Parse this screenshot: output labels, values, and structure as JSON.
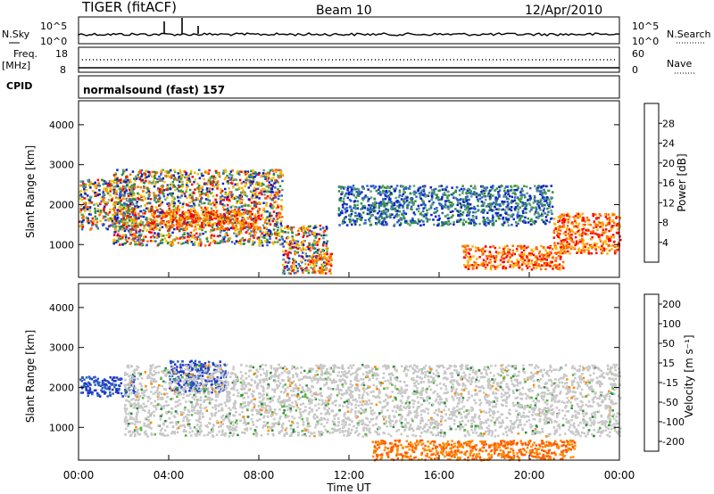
{
  "header": {
    "station": "TIGER (fitACF)",
    "beam": "Beam 10",
    "date": "12/Apr/2010"
  },
  "top_panels": {
    "nsky_label": "N.Sky",
    "nsky_ticks": [
      "10^5",
      "10^0"
    ],
    "nsearch_label": "N.Search",
    "nsearch_ticks": [
      "10^5",
      "10^0"
    ],
    "freq_label_1": "Freq.",
    "freq_label_2": "[MHz]",
    "freq_ticks": [
      "18",
      "8"
    ],
    "nave_label": "Nave",
    "nave_ticks": [
      "60",
      "0"
    ],
    "cpid_label": "CPID",
    "cpid_value": "normalsound (fast) 157"
  },
  "chart_data": [
    {
      "type": "heatmap",
      "panel": "power",
      "xlabel": "",
      "ylabel": "Slant Range [km]",
      "x_ticks": [
        "00:00",
        "04:00",
        "08:00",
        "12:00",
        "16:00",
        "20:00",
        "00:00"
      ],
      "y_ticks": [
        4000,
        3000,
        2000,
        1000
      ],
      "xlim_hours": [
        0,
        24
      ],
      "ylim_km": [
        180,
        4600
      ],
      "colorbar": {
        "label": "Power [dB]",
        "ticks": [
          "28",
          "24",
          "20",
          "16",
          "12",
          "8",
          "4"
        ],
        "colors": [
          "#ff0000",
          "#ff6a00",
          "#ffb000",
          "#e8c800",
          "#2f8f3a",
          "#5fa070",
          "#2c5fd0",
          "#0a1ec8"
        ]
      },
      "regions": [
        {
          "t": [
            0.0,
            2.5
          ],
          "r": [
            1400,
            2650
          ],
          "level": "mixed"
        },
        {
          "t": [
            1.5,
            9.0
          ],
          "r": [
            1000,
            2900
          ],
          "level": "mixed"
        },
        {
          "t": [
            3.0,
            8.0
          ],
          "r": [
            1400,
            1900
          ],
          "level": "high"
        },
        {
          "t": [
            9.0,
            11.0
          ],
          "r": [
            300,
            1500
          ],
          "level": "mixed"
        },
        {
          "t": [
            10.2,
            11.2
          ],
          "r": [
            300,
            800
          ],
          "level": "high"
        },
        {
          "t": [
            11.5,
            21.0
          ],
          "r": [
            1500,
            2500
          ],
          "level": "low"
        },
        {
          "t": [
            17.0,
            21.5
          ],
          "r": [
            400,
            1000
          ],
          "level": "high"
        },
        {
          "t": [
            21.0,
            24.0
          ],
          "r": [
            800,
            1800
          ],
          "level": "high"
        }
      ]
    },
    {
      "type": "heatmap",
      "panel": "velocity",
      "xlabel": "Time UT",
      "ylabel": "Slant Range [km]",
      "x_ticks": [
        "00:00",
        "04:00",
        "08:00",
        "12:00",
        "16:00",
        "20:00",
        "00:00"
      ],
      "y_ticks": [
        4000,
        3000,
        2000,
        1000
      ],
      "xlim_hours": [
        0,
        24
      ],
      "ylim_km": [
        180,
        4600
      ],
      "colorbar": {
        "label": "Velocity [m s⁻¹]",
        "ticks": [
          "200",
          "100",
          "50",
          "15",
          "-15",
          "-50",
          "-100",
          "-200"
        ],
        "colors": [
          "#1e32c8",
          "#2a5fbe",
          "#2e8c3c",
          "#5ab43c",
          "#c8c8c8",
          "#ff8c00",
          "#ff5a00",
          "#ff0000"
        ]
      },
      "regions": [
        {
          "t": [
            0.0,
            2.5
          ],
          "r": [
            1800,
            2300
          ],
          "level": "positive"
        },
        {
          "t": [
            4.0,
            6.5
          ],
          "r": [
            1900,
            2700
          ],
          "level": "positive"
        },
        {
          "t": [
            2.0,
            24.0
          ],
          "r": [
            800,
            2600
          ],
          "level": "ground"
        },
        {
          "t": [
            13.0,
            22.0
          ],
          "r": [
            200,
            700
          ],
          "level": "negative"
        }
      ]
    }
  ]
}
